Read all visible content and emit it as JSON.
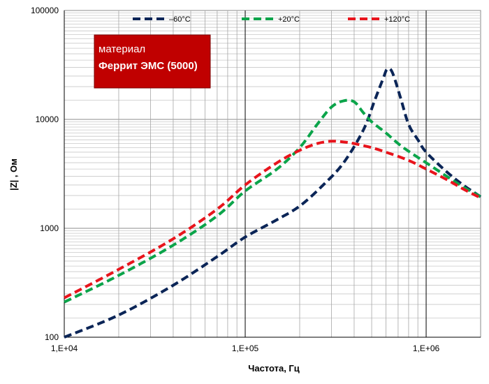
{
  "chart_data": {
    "type": "line",
    "title": "",
    "xlabel": "Частота, Гц",
    "ylabel": "|Z| , Ом",
    "x_scale": "log",
    "y_scale": "log",
    "xlim": [
      10000,
      2000000
    ],
    "ylim": [
      100,
      100000
    ],
    "x_ticks": [
      10000,
      100000,
      1000000
    ],
    "x_tick_labels": [
      "1,E+04",
      "1,E+05",
      "1,E+06"
    ],
    "y_ticks": [
      100,
      1000,
      10000,
      100000
    ],
    "y_tick_labels": [
      "100",
      "1000",
      "10000",
      "100000"
    ],
    "grid": true,
    "legend_position": "top",
    "annotation": {
      "line1": "материал",
      "line2": "Феррит ЭМС (5000)",
      "color": "#c00000"
    },
    "series": [
      {
        "name": "–60°C",
        "color": "#0b2557",
        "points": [
          [
            10000,
            100
          ],
          [
            20000,
            160
          ],
          [
            40000,
            300
          ],
          [
            70000,
            550
          ],
          [
            100000,
            830
          ],
          [
            150000,
            1200
          ],
          [
            200000,
            1600
          ],
          [
            270000,
            2500
          ],
          [
            350000,
            4000
          ],
          [
            450000,
            8000
          ],
          [
            520000,
            15000
          ],
          [
            580000,
            24000
          ],
          [
            610000,
            29000
          ],
          [
            650000,
            27000
          ],
          [
            720000,
            16000
          ],
          [
            800000,
            9000
          ],
          [
            900000,
            6500
          ],
          [
            1000000,
            5000
          ],
          [
            1300000,
            3300
          ],
          [
            1600000,
            2500
          ],
          [
            2000000,
            1950
          ]
        ]
      },
      {
        "name": "+20°C",
        "color": "#0ba44a",
        "points": [
          [
            10000,
            210
          ],
          [
            20000,
            370
          ],
          [
            40000,
            700
          ],
          [
            70000,
            1300
          ],
          [
            100000,
            2200
          ],
          [
            150000,
            3500
          ],
          [
            200000,
            5500
          ],
          [
            250000,
            9000
          ],
          [
            300000,
            13000
          ],
          [
            350000,
            14800
          ],
          [
            400000,
            14500
          ],
          [
            450000,
            11500
          ],
          [
            500000,
            9500
          ],
          [
            600000,
            7500
          ],
          [
            700000,
            6000
          ],
          [
            800000,
            5100
          ],
          [
            1000000,
            4000
          ],
          [
            1300000,
            3000
          ],
          [
            1600000,
            2400
          ],
          [
            2000000,
            1950
          ]
        ]
      },
      {
        "name": "+120°C",
        "color": "#e8141c",
        "points": [
          [
            10000,
            230
          ],
          [
            20000,
            420
          ],
          [
            40000,
            800
          ],
          [
            70000,
            1500
          ],
          [
            100000,
            2500
          ],
          [
            150000,
            4000
          ],
          [
            200000,
            5200
          ],
          [
            250000,
            6000
          ],
          [
            300000,
            6300
          ],
          [
            350000,
            6200
          ],
          [
            400000,
            6000
          ],
          [
            500000,
            5500
          ],
          [
            600000,
            5000
          ],
          [
            800000,
            4200
          ],
          [
            1000000,
            3500
          ],
          [
            1300000,
            2800
          ],
          [
            1600000,
            2300
          ],
          [
            2000000,
            1900
          ]
        ]
      }
    ]
  }
}
